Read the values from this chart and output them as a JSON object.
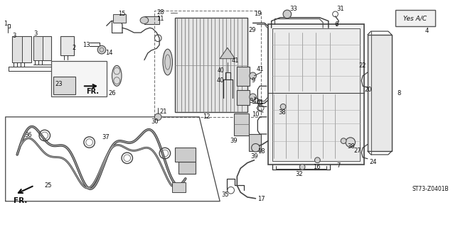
{
  "bg_color": "#ffffff",
  "line_color": "#333333",
  "text_color": "#111111",
  "diagram_code": "ST73-Z0401B",
  "ac_label_text": "Yes A/C"
}
